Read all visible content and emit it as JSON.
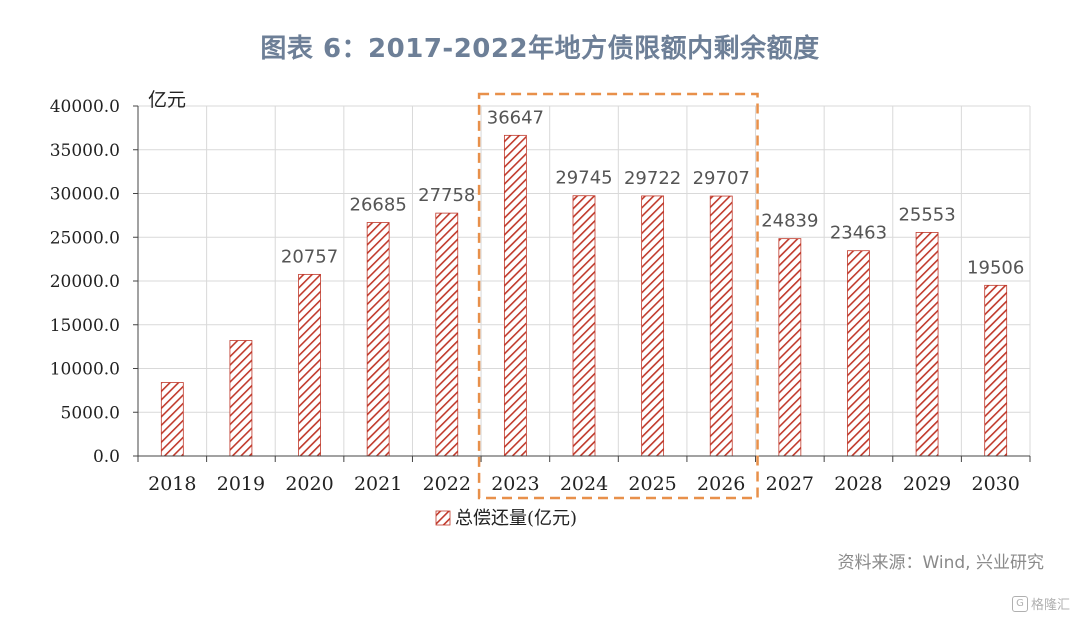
{
  "title": "图表 6：2017-2022年地方债限额内剩余额度",
  "source": "资料来源：Wind, 兴业研究",
  "watermark": "格隆汇",
  "colors": {
    "bar": "#c0392b",
    "highlight_box": "#e8904a",
    "title": "#6d7f97"
  },
  "chart_data": {
    "type": "bar",
    "title": "图表 6：2017-2022年地方债限额内剩余额度",
    "unit_label": "亿元",
    "categories": [
      "2018",
      "2019",
      "2020",
      "2021",
      "2022",
      "2023",
      "2024",
      "2025",
      "2026",
      "2027",
      "2028",
      "2029",
      "2030"
    ],
    "series": [
      {
        "name": "总偿还量(亿元)",
        "values": [
          8400,
          13200,
          20757,
          26685,
          27758,
          36647,
          29745,
          29722,
          29707,
          24839,
          23463,
          25553,
          19506
        ],
        "data_labels": [
          null,
          null,
          "20757",
          "26685",
          "27758",
          "36647",
          "29745",
          "29722",
          "29707",
          "24839",
          "23463",
          "25553",
          "19506"
        ]
      }
    ],
    "y_ticks": [
      "0.0",
      "5000.0",
      "10000.0",
      "15000.0",
      "20000.0",
      "25000.0",
      "30000.0",
      "35000.0",
      "40000.0"
    ],
    "ylim": [
      0,
      40000
    ],
    "grid": true,
    "bar_pattern": "diagonal-hatch",
    "highlight_range": [
      "2023",
      "2026"
    ],
    "legend_position": "bottom-center"
  }
}
